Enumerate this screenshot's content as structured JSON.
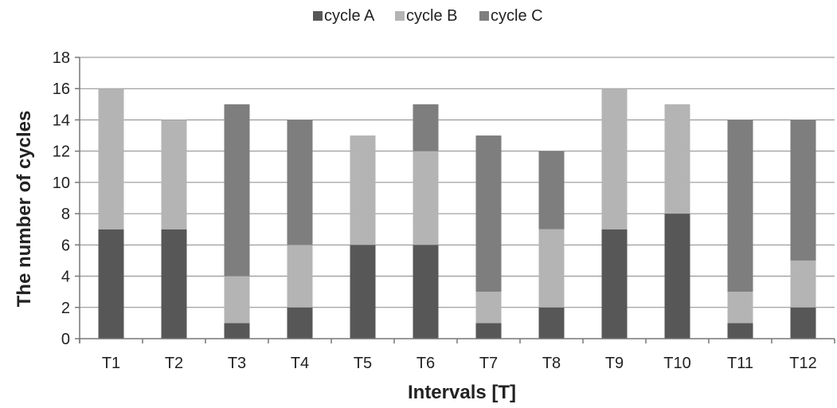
{
  "chart_data": {
    "type": "bar",
    "stacked": true,
    "title": "",
    "xlabel": "Intervals [T]",
    "ylabel": "The number of cycles",
    "categories": [
      "T1",
      "T2",
      "T3",
      "T4",
      "T5",
      "T6",
      "T7",
      "T8",
      "T9",
      "T10",
      "T11",
      "T12"
    ],
    "series": [
      {
        "name": "cycle A",
        "color": "#575757",
        "values": [
          7,
          7,
          1,
          2,
          6,
          6,
          1,
          2,
          7,
          8,
          1,
          2
        ]
      },
      {
        "name": "cycle B",
        "color": "#b4b4b4",
        "values": [
          9,
          7,
          3,
          4,
          7,
          6,
          2,
          5,
          9,
          7,
          2,
          3
        ]
      },
      {
        "name": "cycle C",
        "color": "#7e7e7e",
        "values": [
          0,
          0,
          11,
          8,
          0,
          3,
          10,
          5,
          0,
          0,
          11,
          9
        ]
      }
    ],
    "ylim": [
      0,
      18
    ],
    "yticks": [
      "0",
      "2",
      "4",
      "6",
      "8",
      "10",
      "12",
      "14",
      "16",
      "18"
    ],
    "grid": true,
    "legend_position": "top-center"
  }
}
